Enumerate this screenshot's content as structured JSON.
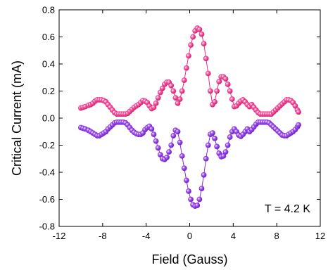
{
  "chart_data": {
    "type": "scatter",
    "xlabel": "Field (Gauss)",
    "ylabel": "Critical Current (mA)",
    "xlim": [
      -12,
      12
    ],
    "ylim": [
      -0.8,
      0.8
    ],
    "x_ticks": [
      -12,
      -8,
      -4,
      0,
      4,
      8,
      12
    ],
    "y_ticks": [
      -0.8,
      -0.6,
      -0.4,
      -0.2,
      0.0,
      0.2,
      0.4,
      0.6,
      0.8
    ],
    "x_tick_labels": [
      "-12",
      "-8",
      "-4",
      "0",
      "4",
      "8",
      "12"
    ],
    "y_tick_labels": [
      "-0.8",
      "-0.6",
      "-0.4",
      "-0.2",
      "0.0",
      "0.2",
      "0.4",
      "0.6",
      "0.8"
    ],
    "annotation": "T = 4.2 K",
    "grid": false,
    "series": [
      {
        "color": "#ec2d84",
        "points": [
          [
            -10.0,
            0.075
          ],
          [
            -9.8,
            0.08
          ],
          [
            -9.6,
            0.085
          ],
          [
            -9.3,
            0.095
          ],
          [
            -9.1,
            0.1
          ],
          [
            -8.9,
            0.11
          ],
          [
            -8.7,
            0.125
          ],
          [
            -8.5,
            0.135
          ],
          [
            -8.3,
            0.135
          ],
          [
            -8.1,
            0.135
          ],
          [
            -7.9,
            0.13
          ],
          [
            -7.7,
            0.12
          ],
          [
            -7.5,
            0.1
          ],
          [
            -7.3,
            0.08
          ],
          [
            -7.1,
            0.06
          ],
          [
            -6.9,
            0.04
          ],
          [
            -6.7,
            0.03
          ],
          [
            -6.5,
            0.03
          ],
          [
            -6.3,
            0.03
          ],
          [
            -6.1,
            0.03
          ],
          [
            -5.9,
            0.03
          ],
          [
            -5.7,
            0.035
          ],
          [
            -5.5,
            0.05
          ],
          [
            -5.3,
            0.065
          ],
          [
            -5.1,
            0.08
          ],
          [
            -4.9,
            0.09
          ],
          [
            -4.7,
            0.1
          ],
          [
            -4.5,
            0.115
          ],
          [
            -4.3,
            0.13
          ],
          [
            -4.1,
            0.125
          ],
          [
            -3.9,
            0.115
          ],
          [
            -3.7,
            0.09
          ],
          [
            -3.5,
            0.07
          ],
          [
            -3.3,
            0.08
          ],
          [
            -3.1,
            0.11
          ],
          [
            -2.9,
            0.15
          ],
          [
            -2.7,
            0.19
          ],
          [
            -2.5,
            0.22
          ],
          [
            -2.3,
            0.25
          ],
          [
            -2.1,
            0.265
          ],
          [
            -1.9,
            0.265
          ],
          [
            -1.7,
            0.24
          ],
          [
            -1.5,
            0.2
          ],
          [
            -1.3,
            0.15
          ],
          [
            -1.1,
            0.11
          ],
          [
            -0.9,
            0.14
          ],
          [
            -0.7,
            0.2
          ],
          [
            -0.5,
            0.28
          ],
          [
            -0.3,
            0.37
          ],
          [
            -0.1,
            0.46
          ],
          [
            0.1,
            0.54
          ],
          [
            0.3,
            0.6
          ],
          [
            0.5,
            0.645
          ],
          [
            0.7,
            0.665
          ],
          [
            0.9,
            0.655
          ],
          [
            1.1,
            0.62
          ],
          [
            1.3,
            0.55
          ],
          [
            1.5,
            0.44
          ],
          [
            1.7,
            0.33
          ],
          [
            1.9,
            0.2
          ],
          [
            2.1,
            0.1
          ],
          [
            2.3,
            0.12
          ],
          [
            2.5,
            0.2
          ],
          [
            2.7,
            0.27
          ],
          [
            2.9,
            0.305
          ],
          [
            3.1,
            0.305
          ],
          [
            3.3,
            0.29
          ],
          [
            3.5,
            0.25
          ],
          [
            3.7,
            0.2
          ],
          [
            3.9,
            0.14
          ],
          [
            4.1,
            0.085
          ],
          [
            4.3,
            0.09
          ],
          [
            4.5,
            0.11
          ],
          [
            4.7,
            0.125
          ],
          [
            4.9,
            0.135
          ],
          [
            5.1,
            0.12
          ],
          [
            5.3,
            0.1
          ],
          [
            5.5,
            0.085
          ],
          [
            5.7,
            0.1
          ],
          [
            5.9,
            0.08
          ],
          [
            6.1,
            0.06
          ],
          [
            6.3,
            0.04
          ],
          [
            6.5,
            0.03
          ],
          [
            6.7,
            0.03
          ],
          [
            6.9,
            0.03
          ],
          [
            7.1,
            0.03
          ],
          [
            7.3,
            0.03
          ],
          [
            7.5,
            0.03
          ],
          [
            7.7,
            0.045
          ],
          [
            7.9,
            0.06
          ],
          [
            8.1,
            0.075
          ],
          [
            8.3,
            0.09
          ],
          [
            8.5,
            0.105
          ],
          [
            8.7,
            0.12
          ],
          [
            8.9,
            0.135
          ],
          [
            9.1,
            0.135
          ],
          [
            9.3,
            0.13
          ],
          [
            9.5,
            0.115
          ],
          [
            9.7,
            0.09
          ],
          [
            9.9,
            0.06
          ],
          [
            10.0,
            0.045
          ]
        ]
      },
      {
        "color": "#8a2be2",
        "points": [
          [
            -10.0,
            -0.07
          ],
          [
            -9.8,
            -0.075
          ],
          [
            -9.6,
            -0.08
          ],
          [
            -9.3,
            -0.09
          ],
          [
            -9.1,
            -0.1
          ],
          [
            -8.9,
            -0.11
          ],
          [
            -8.7,
            -0.12
          ],
          [
            -8.5,
            -0.13
          ],
          [
            -8.3,
            -0.13
          ],
          [
            -8.1,
            -0.12
          ],
          [
            -7.9,
            -0.11
          ],
          [
            -7.7,
            -0.1
          ],
          [
            -7.5,
            -0.08
          ],
          [
            -7.3,
            -0.065
          ],
          [
            -7.1,
            -0.05
          ],
          [
            -6.9,
            -0.035
          ],
          [
            -6.7,
            -0.03
          ],
          [
            -6.5,
            -0.03
          ],
          [
            -6.3,
            -0.03
          ],
          [
            -6.1,
            -0.03
          ],
          [
            -5.9,
            -0.035
          ],
          [
            -5.7,
            -0.05
          ],
          [
            -5.5,
            -0.07
          ],
          [
            -5.3,
            -0.09
          ],
          [
            -5.1,
            -0.105
          ],
          [
            -4.9,
            -0.115
          ],
          [
            -4.7,
            -0.12
          ],
          [
            -4.5,
            -0.12
          ],
          [
            -4.3,
            -0.11
          ],
          [
            -4.1,
            -0.085
          ],
          [
            -3.9,
            -0.07
          ],
          [
            -3.7,
            -0.06
          ],
          [
            -3.5,
            -0.08
          ],
          [
            -3.3,
            -0.12
          ],
          [
            -3.1,
            -0.17
          ],
          [
            -2.9,
            -0.22
          ],
          [
            -2.7,
            -0.27
          ],
          [
            -2.5,
            -0.3
          ],
          [
            -2.3,
            -0.305
          ],
          [
            -2.1,
            -0.29
          ],
          [
            -1.9,
            -0.25
          ],
          [
            -1.7,
            -0.2
          ],
          [
            -1.5,
            -0.13
          ],
          [
            -1.3,
            -0.09
          ],
          [
            -1.1,
            -0.1
          ],
          [
            -0.9,
            -0.18
          ],
          [
            -0.7,
            -0.28
          ],
          [
            -0.5,
            -0.37
          ],
          [
            -0.3,
            -0.46
          ],
          [
            -0.1,
            -0.54
          ],
          [
            0.1,
            -0.6
          ],
          [
            0.3,
            -0.64
          ],
          [
            0.5,
            -0.65
          ],
          [
            0.7,
            -0.645
          ],
          [
            0.9,
            -0.6
          ],
          [
            1.1,
            -0.52
          ],
          [
            1.3,
            -0.42
          ],
          [
            1.5,
            -0.3
          ],
          [
            1.7,
            -0.2
          ],
          [
            1.9,
            -0.12
          ],
          [
            2.1,
            -0.11
          ],
          [
            2.3,
            -0.15
          ],
          [
            2.5,
            -0.21
          ],
          [
            2.7,
            -0.26
          ],
          [
            2.9,
            -0.285
          ],
          [
            3.1,
            -0.28
          ],
          [
            3.3,
            -0.25
          ],
          [
            3.5,
            -0.2
          ],
          [
            3.7,
            -0.14
          ],
          [
            3.9,
            -0.1
          ],
          [
            4.1,
            -0.08
          ],
          [
            4.3,
            -0.1
          ],
          [
            4.5,
            -0.125
          ],
          [
            4.7,
            -0.135
          ],
          [
            4.9,
            -0.12
          ],
          [
            5.1,
            -0.1
          ],
          [
            5.3,
            -0.08
          ],
          [
            5.5,
            -0.1
          ],
          [
            5.7,
            -0.085
          ],
          [
            5.9,
            -0.065
          ],
          [
            6.1,
            -0.045
          ],
          [
            6.3,
            -0.03
          ],
          [
            6.5,
            -0.03
          ],
          [
            6.7,
            -0.03
          ],
          [
            6.9,
            -0.03
          ],
          [
            7.1,
            -0.03
          ],
          [
            7.3,
            -0.035
          ],
          [
            7.5,
            -0.05
          ],
          [
            7.7,
            -0.065
          ],
          [
            7.9,
            -0.08
          ],
          [
            8.1,
            -0.095
          ],
          [
            8.3,
            -0.11
          ],
          [
            8.5,
            -0.125
          ],
          [
            8.7,
            -0.13
          ],
          [
            8.9,
            -0.13
          ],
          [
            9.1,
            -0.12
          ],
          [
            9.3,
            -0.11
          ],
          [
            9.5,
            -0.1
          ],
          [
            9.7,
            -0.085
          ],
          [
            9.9,
            -0.065
          ],
          [
            10.0,
            -0.05
          ]
        ]
      }
    ]
  }
}
